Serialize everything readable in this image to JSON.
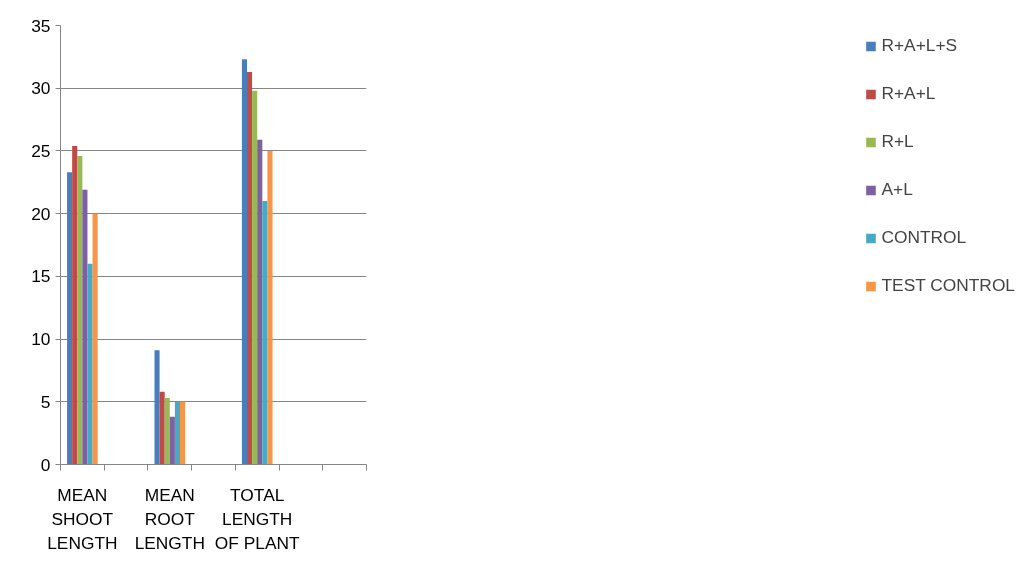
{
  "chart_data": {
    "type": "bar",
    "categories": [
      "MEAN SHOOT LENGTH",
      null,
      "MEAN ROOT LENGTH",
      null,
      "TOTAL LENGTH OF PLANT",
      null,
      null
    ],
    "series": [
      {
        "name": "R+A+L+S",
        "color": "#4a7ebb",
        "values": [
          23.3,
          null,
          9.1,
          null,
          32.3,
          null,
          null
        ]
      },
      {
        "name": "R+A+L",
        "color": "#be4b48",
        "values": [
          25.4,
          null,
          5.8,
          null,
          31.3,
          null,
          null
        ]
      },
      {
        "name": "R+L",
        "color": "#98b954",
        "values": [
          24.6,
          null,
          5.3,
          null,
          29.8,
          null,
          null
        ]
      },
      {
        "name": "A+L",
        "color": "#7d60a0",
        "values": [
          21.9,
          null,
          3.8,
          null,
          25.9,
          null,
          null
        ]
      },
      {
        "name": "CONTROL",
        "color": "#46aac5",
        "values": [
          16.0,
          null,
          5.0,
          null,
          21.0,
          null,
          null
        ]
      },
      {
        "name": "TEST CONTROL",
        "color": "#f79646",
        "values": [
          20.0,
          null,
          5.0,
          null,
          25.0,
          null,
          null
        ]
      }
    ],
    "ylim": [
      0,
      35
    ],
    "yticks": [
      0,
      5,
      10,
      15,
      20,
      25,
      30,
      35
    ],
    "grid": "y",
    "legend": "right"
  }
}
